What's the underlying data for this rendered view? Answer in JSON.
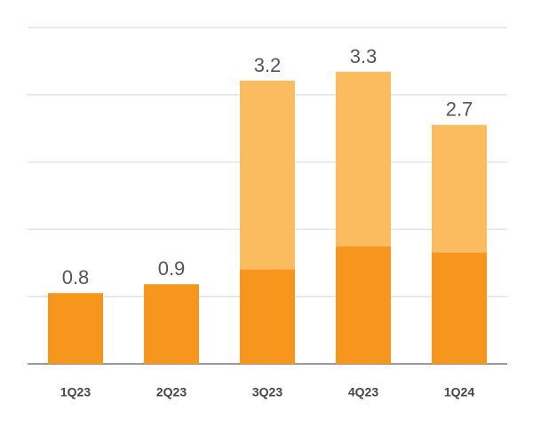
{
  "chart_data": {
    "type": "stacked_bar",
    "categories": [
      "1Q23",
      "2Q23",
      "3Q23",
      "4Q23",
      "1Q24"
    ],
    "series": [
      {
        "color": "#f7961c",
        "values": [
          0.8,
          0.9,
          1.07,
          1.33,
          1.26
        ]
      },
      {
        "color": "#fbbb5f",
        "values": [
          null,
          null,
          2.13,
          1.97,
          1.44
        ]
      }
    ],
    "totals": [
      0.8,
      0.9,
      3.2,
      3.3,
      2.7
    ],
    "ylim": [
      0,
      3.8
    ],
    "yticks": [
      0,
      0.76,
      1.52,
      2.28,
      3.04,
      3.8
    ],
    "grid": true
  }
}
